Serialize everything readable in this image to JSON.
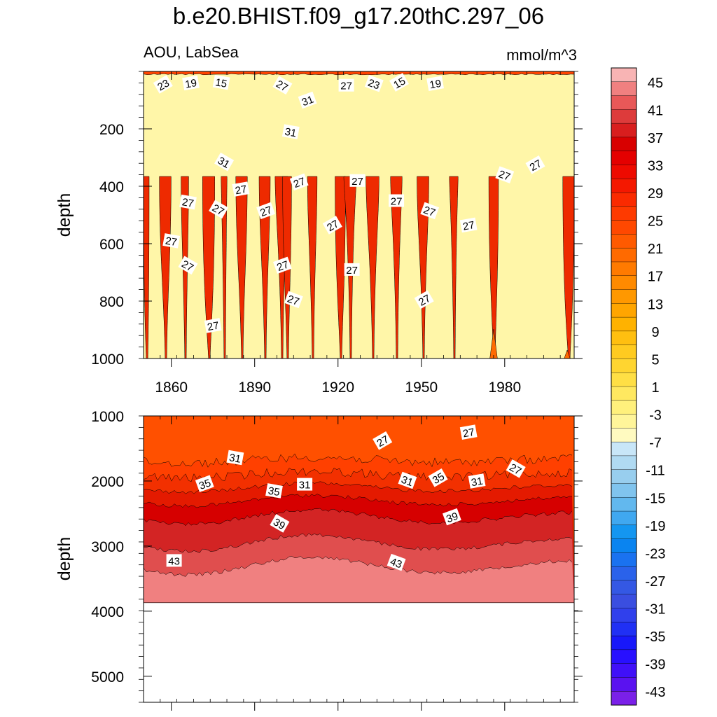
{
  "title": "b.e20.BHIST.f09_g17.20thC.297_06",
  "variable_label": "AOU, LabSea",
  "units": "mmol/m^3",
  "chart_data": [
    {
      "type": "heatmap",
      "name": "upper-panel",
      "ylabel": "depth",
      "ylim": [
        1000,
        0
      ],
      "yticks": [
        200,
        400,
        600,
        800,
        1000
      ],
      "xlim": [
        1850,
        2005
      ],
      "xticks": [
        1860,
        1890,
        1920,
        1950,
        1980
      ],
      "boundary_depths": [
        10,
        20,
        30,
        45,
        60,
        80,
        110,
        150,
        250,
        400,
        1000
      ],
      "contour_labels": [
        {
          "text": "23",
          "year": 1857,
          "depth": 45
        },
        {
          "text": "19",
          "year": 1867,
          "depth": 40
        },
        {
          "text": "15",
          "year": 1878,
          "depth": 38
        },
        {
          "text": "27",
          "year": 1900,
          "depth": 48
        },
        {
          "text": "31",
          "year": 1909,
          "depth": 100
        },
        {
          "text": "27",
          "year": 1923,
          "depth": 48
        },
        {
          "text": "23",
          "year": 1933,
          "depth": 42
        },
        {
          "text": "15",
          "year": 1942,
          "depth": 38
        },
        {
          "text": "19",
          "year": 1955,
          "depth": 42
        },
        {
          "text": "31",
          "year": 1903,
          "depth": 210
        },
        {
          "text": "31",
          "year": 1879,
          "depth": 315
        },
        {
          "text": "27",
          "year": 1906,
          "depth": 385
        },
        {
          "text": "27",
          "year": 1927,
          "depth": 380
        },
        {
          "text": "27",
          "year": 1980,
          "depth": 360
        },
        {
          "text": "27",
          "year": 1991,
          "depth": 325
        },
        {
          "text": "27",
          "year": 1885,
          "depth": 410
        },
        {
          "text": "27",
          "year": 1866,
          "depth": 455
        },
        {
          "text": "27",
          "year": 1877,
          "depth": 480
        },
        {
          "text": "27",
          "year": 1894,
          "depth": 485
        },
        {
          "text": "27",
          "year": 1941,
          "depth": 450
        },
        {
          "text": "27",
          "year": 1953,
          "depth": 485
        },
        {
          "text": "27",
          "year": 1918,
          "depth": 535
        },
        {
          "text": "27",
          "year": 1967,
          "depth": 535
        },
        {
          "text": "27",
          "year": 1860,
          "depth": 590
        },
        {
          "text": "27",
          "year": 1866,
          "depth": 675
        },
        {
          "text": "27",
          "year": 1900,
          "depth": 675
        },
        {
          "text": "27",
          "year": 1925,
          "depth": 690
        },
        {
          "text": "27",
          "year": 1904,
          "depth": 795
        },
        {
          "text": "27",
          "year": 1951,
          "depth": 795
        },
        {
          "text": "27",
          "year": 1875,
          "depth": 885
        }
      ]
    },
    {
      "type": "heatmap",
      "name": "lower-panel",
      "ylabel": "depth",
      "ylim": [
        5400,
        1000
      ],
      "yticks": [
        1000,
        2000,
        3000,
        4000,
        5000
      ],
      "xlim": [
        1850,
        2005
      ],
      "data_bottom_depth": 3870,
      "contour_labels": [
        {
          "text": "27",
          "year": 1936,
          "depth": 1380
        },
        {
          "text": "27",
          "year": 1967,
          "depth": 1250
        },
        {
          "text": "31",
          "year": 1883,
          "depth": 1640
        },
        {
          "text": "27",
          "year": 1984,
          "depth": 1810
        },
        {
          "text": "35",
          "year": 1872,
          "depth": 2040
        },
        {
          "text": "31",
          "year": 1908,
          "depth": 2050
        },
        {
          "text": "31",
          "year": 1945,
          "depth": 1990
        },
        {
          "text": "35",
          "year": 1956,
          "depth": 1950
        },
        {
          "text": "31",
          "year": 1970,
          "depth": 2000
        },
        {
          "text": "35",
          "year": 1897,
          "depth": 2150
        },
        {
          "text": "39",
          "year": 1899,
          "depth": 2650
        },
        {
          "text": "39",
          "year": 1961,
          "depth": 2550
        },
        {
          "text": "43",
          "year": 1861,
          "depth": 3220
        },
        {
          "text": "43",
          "year": 1941,
          "depth": 3250
        }
      ]
    }
  ],
  "colorbar": {
    "labels": [
      "45",
      "41",
      "37",
      "33",
      "29",
      "25",
      "21",
      "17",
      "13",
      "9",
      "5",
      "1",
      "-3",
      "-7",
      "-11",
      "-15",
      "-19",
      "-23",
      "-27",
      "-31",
      "-35",
      "-39",
      "-43"
    ],
    "colors": [
      "#f8b4b4",
      "#f08080",
      "#e85858",
      "#dd3b3b",
      "#d81e1e",
      "#d80000",
      "#e40000",
      "#ee0a00",
      "#f41800",
      "#fa2a00",
      "#fe3a00",
      "#ff4800",
      "#ff5a00",
      "#ff6a00",
      "#ff7a00",
      "#ff8a00",
      "#ff9800",
      "#ffa500",
      "#ffb200",
      "#ffbf10",
      "#ffcb20",
      "#ffd530",
      "#ffdf45",
      "#ffe860",
      "#fff07c",
      "#fff59a",
      "#fffac0",
      "#c8e6f8",
      "#b0daf2",
      "#98ceee",
      "#80c4ee",
      "#62b8ee",
      "#40a8f0",
      "#1496f0",
      "#0a84f0",
      "#1a72f0",
      "#2a62ea",
      "#3458e4",
      "#3a4ee0",
      "#3040ec",
      "#2030f4",
      "#1818fa",
      "#2810ff",
      "#4010f8",
      "#5a12f0",
      "#7a20e8"
    ]
  }
}
